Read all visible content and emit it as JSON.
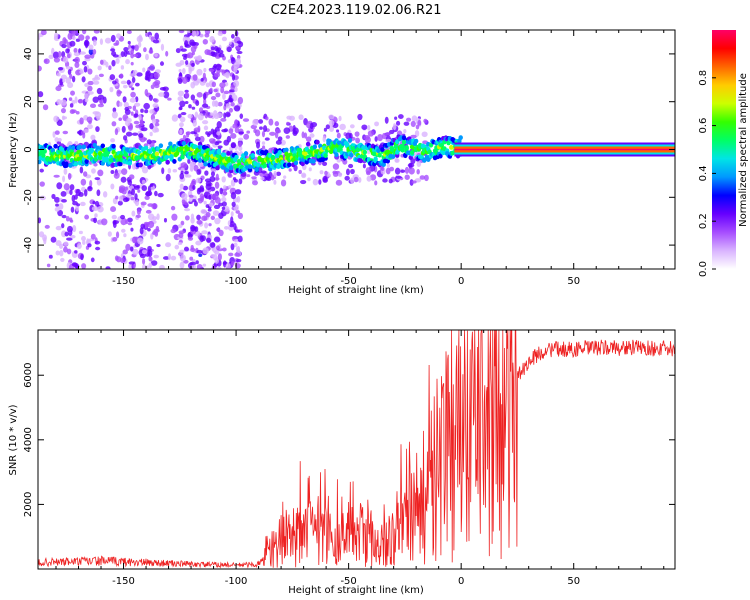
{
  "title": "C2E4.2023.119.02.06.R21",
  "chart_data": [
    {
      "type": "heatmap",
      "xlabel": "Height of straight line (km)",
      "ylabel": "Frequency (Hz)",
      "xlim": [
        -188,
        95
      ],
      "ylim": [
        -50,
        50
      ],
      "xticks": [
        -150,
        -100,
        -50,
        0,
        50
      ],
      "yticks": [
        -40,
        -20,
        0,
        20,
        40
      ],
      "grid": false,
      "colorbar": {
        "label": "Normalized spectral amplitude",
        "range": [
          0,
          1
        ],
        "ticks": [
          "0.0",
          "0.2",
          "0.4",
          "0.6",
          "0.8"
        ],
        "colors": [
          "#ffffff",
          "#d9b3ff",
          "#a64dff",
          "#6600ff",
          "#0000ff",
          "#0099ff",
          "#00e5e5",
          "#00ff66",
          "#33ff00",
          "#ccff00",
          "#ffcc00",
          "#ff6600",
          "#ff0000",
          "#ff0066"
        ]
      },
      "ridge": {
        "x": [
          -188,
          -175,
          -160,
          -145,
          -135,
          -125,
          -122,
          -100,
          -95,
          -90,
          -80,
          -70,
          -60,
          -55,
          -50,
          -45,
          -40,
          -35,
          -30,
          -27,
          -25,
          -20,
          -15,
          -10,
          -5,
          0,
          5,
          10,
          15,
          95
        ],
        "y": [
          -2,
          -3,
          -2,
          -3,
          -2,
          -1,
          0,
          -6,
          -5,
          -5,
          -4,
          -2,
          0,
          1,
          0,
          -1,
          -2,
          -3,
          0,
          2,
          1,
          0,
          -1,
          1,
          1,
          1,
          -2,
          -1,
          0,
          0
        ],
        "pure_tone_from": 0
      }
    },
    {
      "type": "line",
      "xlabel": "Height of straight line (km)",
      "ylabel": "SNR (10 * v/v)",
      "xlim": [
        -188,
        95
      ],
      "ylim": [
        0,
        7400
      ],
      "xticks": [
        -150,
        -100,
        -50,
        0,
        50
      ],
      "yticks": [
        2000,
        4000,
        6000
      ],
      "grid": false,
      "series": [
        {
          "color": "#ee2222",
          "x": [
            -188,
            -160,
            -140,
            -120,
            -100,
            -90,
            -88,
            -85,
            -80,
            -70,
            -60,
            -50,
            -45,
            -40,
            -35,
            -30,
            -25,
            -20,
            -15,
            -10,
            -5,
            0,
            5,
            10,
            15,
            20,
            25,
            30,
            35,
            40,
            50,
            60,
            70,
            80,
            95
          ],
          "y": [
            200,
            250,
            200,
            150,
            120,
            150,
            250,
            600,
            900,
            1100,
            1200,
            1200,
            1100,
            1000,
            900,
            1000,
            1400,
            1900,
            2400,
            3000,
            3500,
            3800,
            4100,
            4400,
            4500,
            4800,
            6000,
            6400,
            6700,
            6800,
            6800,
            6850,
            6850,
            6850,
            6800
          ]
        }
      ]
    }
  ]
}
